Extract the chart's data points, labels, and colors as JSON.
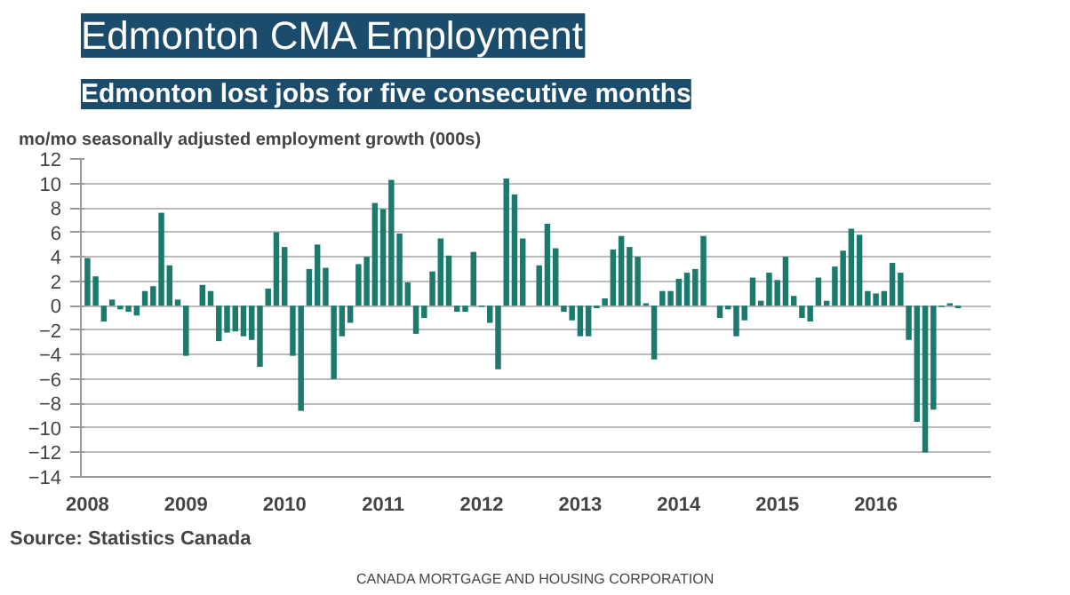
{
  "chart_data": {
    "type": "bar",
    "title": "Edmonton CMA Employment",
    "subtitle": "Edmonton lost jobs for five consecutive months",
    "ylabel": "mo/mo seasonally adjusted employment growth (000s)",
    "categories": [
      "2008",
      null,
      null,
      null,
      null,
      null,
      null,
      null,
      null,
      null,
      null,
      null,
      "2009",
      null,
      null,
      null,
      null,
      null,
      null,
      null,
      null,
      null,
      null,
      null,
      "2010",
      null,
      null,
      null,
      null,
      null,
      null,
      null,
      null,
      null,
      null,
      null,
      "2011",
      null,
      null,
      null,
      null,
      null,
      null,
      null,
      null,
      null,
      null,
      null,
      "2012",
      null,
      null,
      null,
      null,
      null,
      null,
      null,
      null,
      null,
      null,
      null,
      "2013",
      null,
      null,
      null,
      null,
      null,
      null,
      null,
      null,
      null,
      null,
      null,
      "2014",
      null,
      null,
      null,
      null,
      null,
      null,
      null,
      null,
      null,
      null,
      null,
      "2015",
      null,
      null,
      null,
      null,
      null,
      null,
      null,
      null,
      null,
      null,
      null,
      "2016",
      null,
      null,
      null,
      null,
      null,
      null,
      null,
      null,
      null,
      null
    ],
    "values": [
      3.9,
      2.4,
      -1.3,
      0.5,
      -0.3,
      -0.5,
      -0.8,
      1.2,
      1.6,
      7.6,
      3.3,
      0.5,
      -4.1,
      0,
      1.7,
      1.2,
      -2.9,
      -2.2,
      -2.1,
      -2.5,
      -2.8,
      -5.0,
      1.4,
      6.0,
      4.8,
      -4.1,
      -8.6,
      3.0,
      5.0,
      3.1,
      -6.0,
      -2.5,
      -1.4,
      3.4,
      4.0,
      8.4,
      7.9,
      10.3,
      5.9,
      1.9,
      -2.3,
      -1.0,
      2.8,
      5.5,
      4.1,
      -0.5,
      -0.5,
      4.4,
      -0.1,
      -1.4,
      -5.2,
      10.4,
      9.1,
      5.5,
      0,
      3.3,
      6.7,
      4.7,
      -0.5,
      -1.2,
      -2.5,
      -2.5,
      -0.2,
      0.6,
      4.6,
      5.7,
      4.8,
      4.0,
      0.2,
      -4.4,
      1.2,
      1.2,
      2.2,
      2.7,
      3.0,
      5.7,
      0,
      -1.0,
      -0.3,
      -2.5,
      -1.2,
      2.3,
      0.4,
      2.7,
      2.1,
      4.0,
      0.8,
      -1.0,
      -1.3,
      2.3,
      0.4,
      3.2,
      4.5,
      6.3,
      5.8,
      1.2,
      1.0,
      1.2,
      3.5,
      2.7,
      -2.8,
      -9.5,
      -12.0,
      -8.5,
      -0.1,
      0.2,
      -0.2
    ],
    "color": "#1b7a6c",
    "ylim": [
      -14,
      12
    ],
    "yticks": [
      -14,
      -12,
      -10,
      -8,
      -6,
      -4,
      -2,
      0,
      2,
      4,
      6,
      8,
      10,
      12
    ],
    "grid": "y",
    "annotations": [
      "Source: Statistics Canada",
      "CANADA MORTGAGE AND HOUSING CORPORATION"
    ]
  }
}
